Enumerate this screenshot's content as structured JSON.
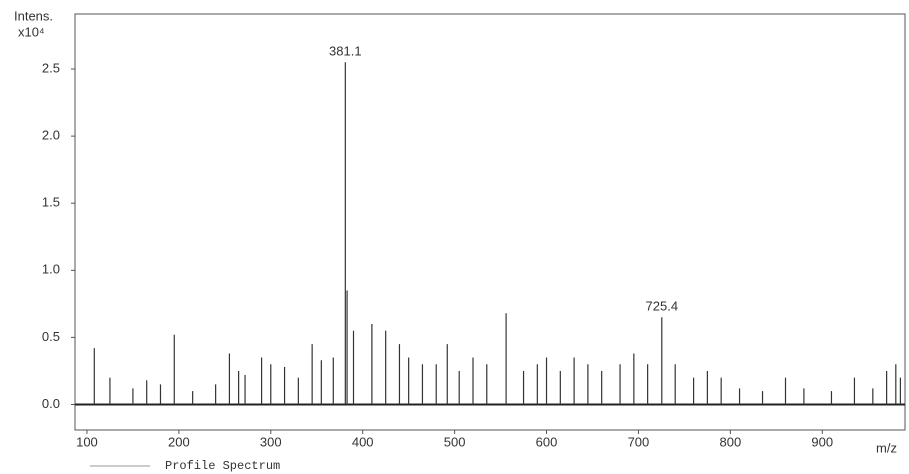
{
  "chart_data": {
    "type": "stem",
    "y_label": "Intens.",
    "y_multiplier": "x10⁴",
    "x_label": "m/z",
    "legend": "Profile Spectrum",
    "x": [
      108,
      125,
      150,
      165,
      180,
      195,
      215,
      240,
      255,
      265,
      272,
      290,
      300,
      315,
      330,
      345,
      355,
      368,
      381.1,
      383,
      390,
      410,
      425,
      440,
      450,
      465,
      480,
      492,
      505,
      520,
      535,
      556,
      575,
      590,
      600,
      615,
      630,
      645,
      660,
      680,
      695,
      710,
      725.4,
      740,
      760,
      775,
      790,
      810,
      835,
      860,
      880,
      910,
      935,
      955,
      970,
      980,
      985
    ],
    "values": [
      0.42,
      0.2,
      0.12,
      0.18,
      0.15,
      0.52,
      0.1,
      0.15,
      0.38,
      0.25,
      0.22,
      0.35,
      0.3,
      0.28,
      0.2,
      0.45,
      0.33,
      0.35,
      2.55,
      0.85,
      0.55,
      0.6,
      0.55,
      0.45,
      0.35,
      0.3,
      0.3,
      0.45,
      0.25,
      0.35,
      0.3,
      0.68,
      0.25,
      0.3,
      0.35,
      0.25,
      0.35,
      0.3,
      0.25,
      0.3,
      0.38,
      0.3,
      0.65,
      0.3,
      0.2,
      0.25,
      0.2,
      0.12,
      0.1,
      0.2,
      0.12,
      0.1,
      0.2,
      0.12,
      0.25,
      0.3,
      0.2
    ],
    "color": "#333333",
    "annotations": [
      {
        "x": 381.1,
        "y": 2.55
      },
      {
        "x": 725.4,
        "y": 0.65
      }
    ],
    "xlim": [
      87,
      990
    ],
    "xticks": [
      100,
      200,
      300,
      400,
      500,
      600,
      700,
      800,
      900
    ],
    "ylim": [
      -0.19,
      2.91
    ],
    "yticks": [
      {
        "value": 0,
        "label": "0.0"
      },
      0.5,
      {
        "value": 1,
        "label": "1.0"
      },
      1.5,
      {
        "value": 2,
        "label": "2.0"
      },
      2.5
    ]
  }
}
